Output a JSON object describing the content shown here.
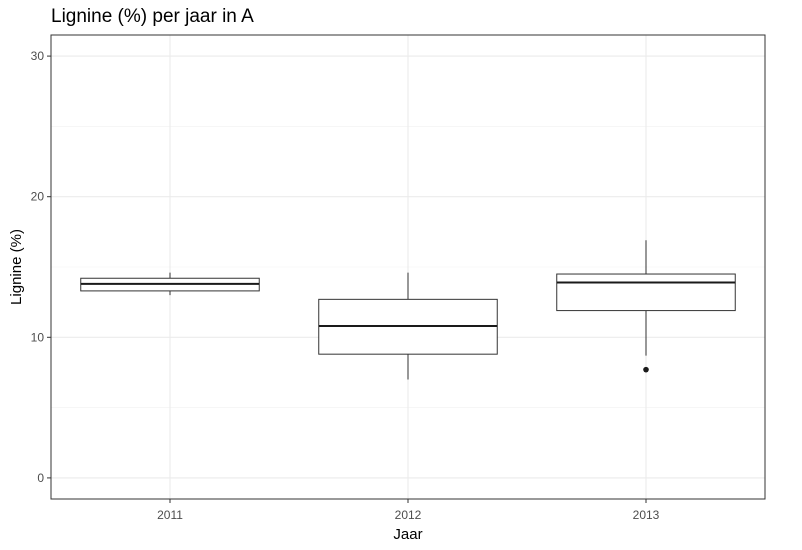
{
  "chart_data": {
    "type": "box",
    "title": "Lignine (%) per jaar in A",
    "xlabel": "Jaar",
    "ylabel": "Lignine (%)",
    "ylim": [
      -1.5,
      31.5
    ],
    "yticks": [
      0,
      10,
      20,
      30
    ],
    "grid": true,
    "categories": [
      "2011",
      "2012",
      "2013"
    ],
    "boxes": [
      {
        "category": "2011",
        "whisker_low": 13.0,
        "q1": 13.3,
        "median": 13.8,
        "q3": 14.2,
        "whisker_high": 14.6,
        "outliers": []
      },
      {
        "category": "2012",
        "whisker_low": 7.0,
        "q1": 8.8,
        "median": 10.8,
        "q3": 12.7,
        "whisker_high": 14.6,
        "outliers": []
      },
      {
        "category": "2013",
        "whisker_low": 8.7,
        "q1": 11.9,
        "median": 13.9,
        "q3": 14.5,
        "whisker_high": 16.9,
        "outliers": [
          7.7
        ]
      }
    ]
  }
}
